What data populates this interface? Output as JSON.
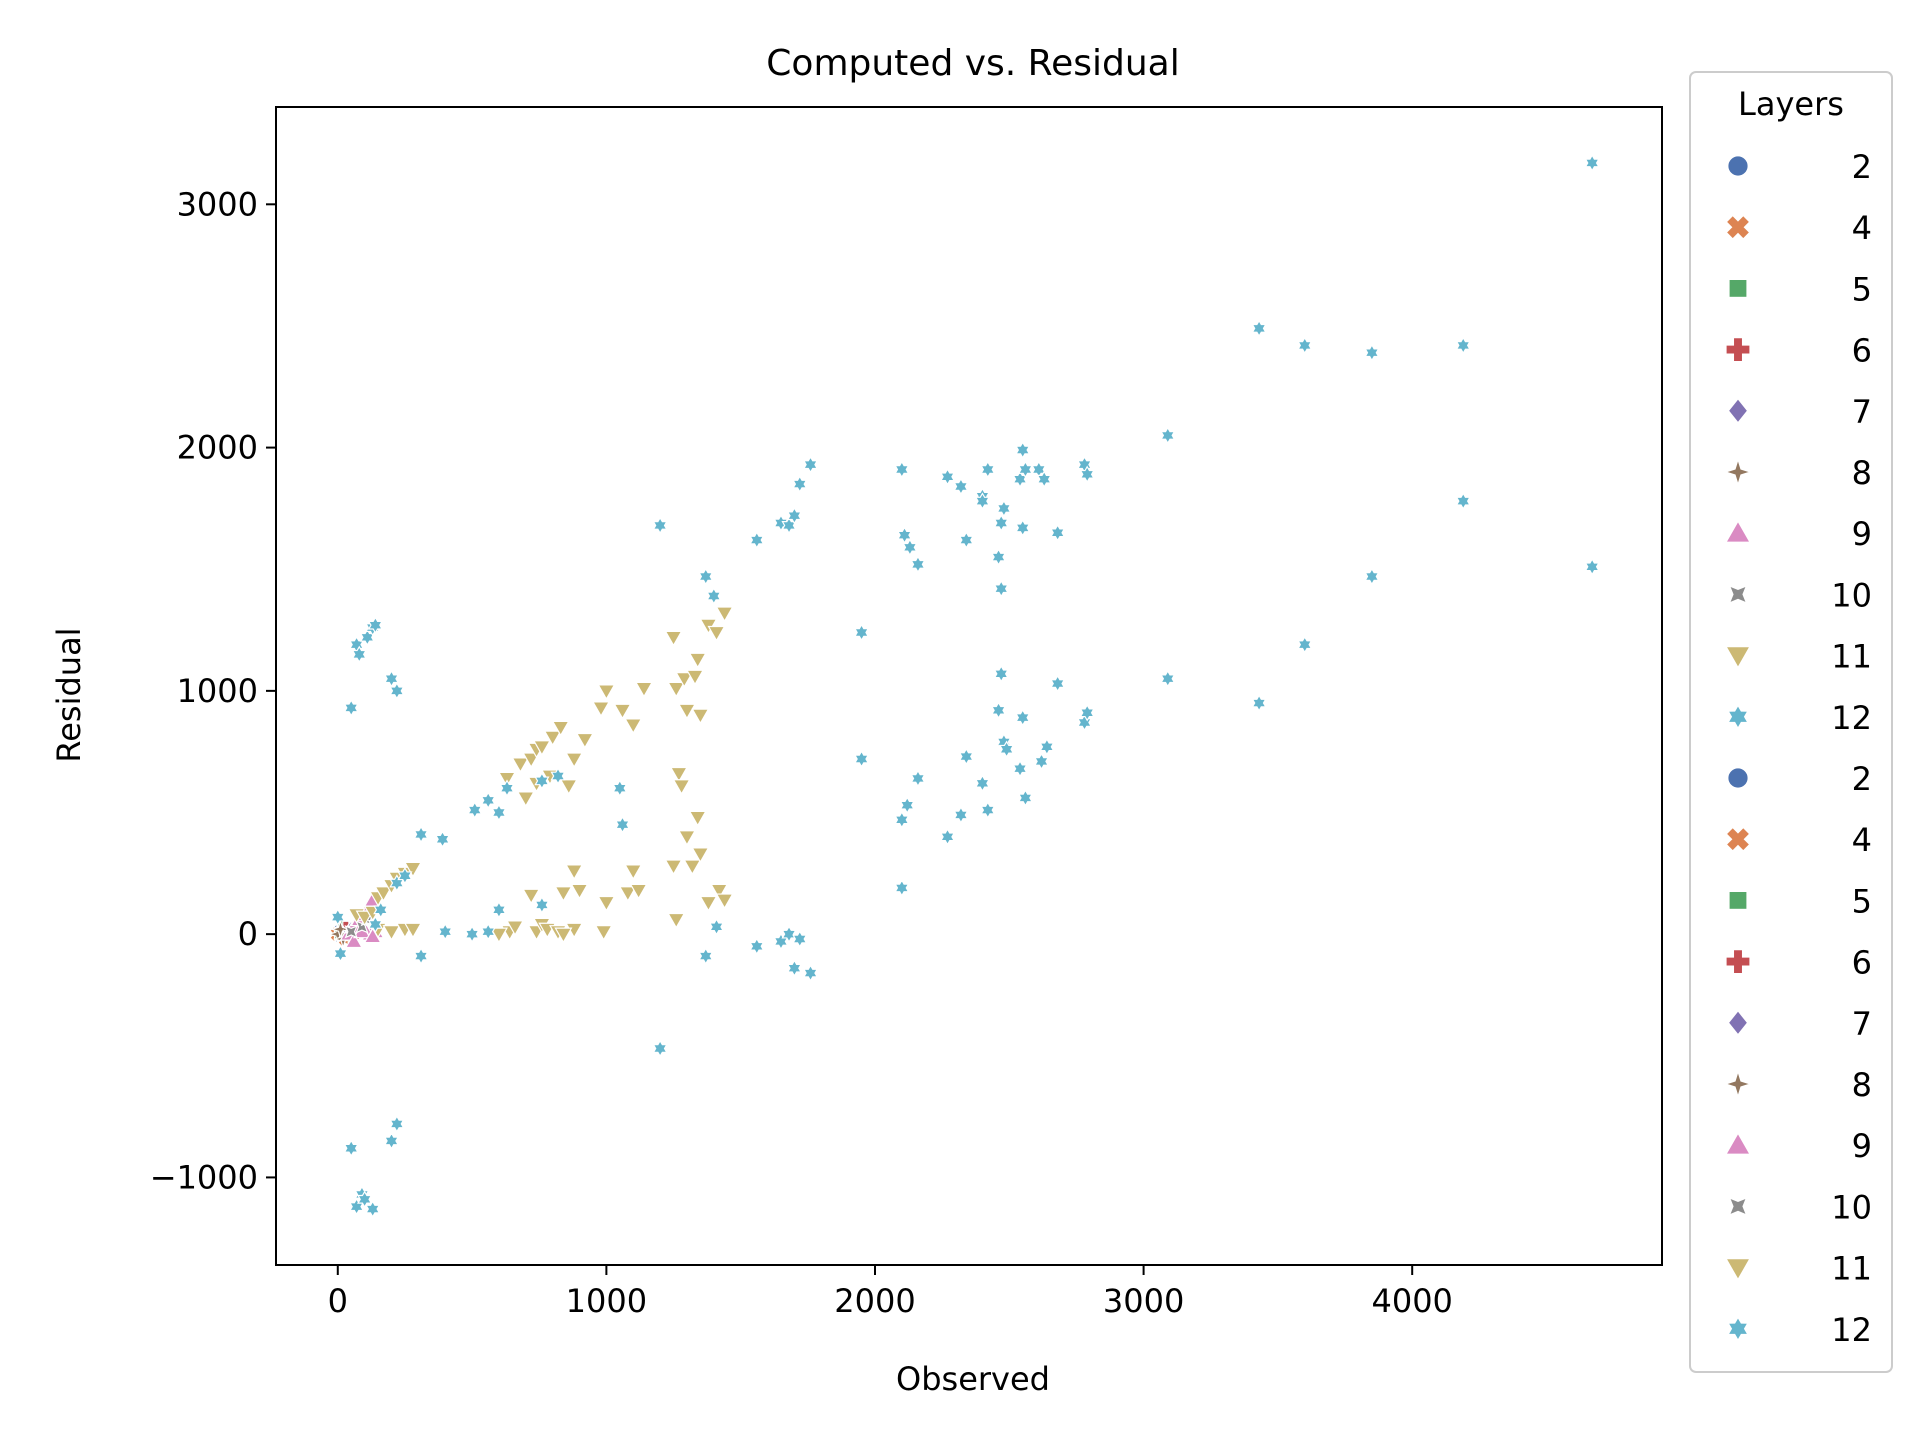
{
  "chart_data": {
    "type": "scatter",
    "title": "Computed vs. Residual",
    "xlabel": "Observed",
    "ylabel": "Residual",
    "xlim": [
      -230,
      4930
    ],
    "ylim": [
      -1360,
      3400
    ],
    "xticks": [
      0,
      1000,
      2000,
      3000,
      4000
    ],
    "yticks": [
      -1000,
      0,
      1000,
      2000,
      3000
    ],
    "xtick_labels": [
      "0",
      "1000",
      "2000",
      "3000",
      "4000"
    ],
    "ytick_labels": [
      "−1000",
      "0",
      "1000",
      "2000",
      "3000"
    ],
    "grid": false,
    "legend": {
      "title": "Layers",
      "placement": "outside-right",
      "entries": [
        {
          "label": "2",
          "marker": "circle",
          "color": "#4c72b0"
        },
        {
          "label": "4",
          "marker": "x",
          "color": "#dd8452"
        },
        {
          "label": "5",
          "marker": "square",
          "color": "#55a868"
        },
        {
          "label": "6",
          "marker": "plus",
          "color": "#c44e52"
        },
        {
          "label": "7",
          "marker": "diamond",
          "color": "#8172b3"
        },
        {
          "label": "8",
          "marker": "star4",
          "color": "#937860"
        },
        {
          "label": "9",
          "marker": "triangle-up",
          "color": "#da8bc3"
        },
        {
          "label": "10",
          "marker": "star4x",
          "color": "#8c8c8c"
        },
        {
          "label": "11",
          "marker": "triangle-down",
          "color": "#ccb974"
        },
        {
          "label": "12",
          "marker": "star6",
          "color": "#64b5cd"
        },
        {
          "label": "2",
          "marker": "circle",
          "color": "#4c72b0"
        },
        {
          "label": "4",
          "marker": "x",
          "color": "#dd8452"
        },
        {
          "label": "5",
          "marker": "square",
          "color": "#55a868"
        },
        {
          "label": "6",
          "marker": "plus",
          "color": "#c44e52"
        },
        {
          "label": "7",
          "marker": "diamond",
          "color": "#8172b3"
        },
        {
          "label": "8",
          "marker": "star4",
          "color": "#937860"
        },
        {
          "label": "9",
          "marker": "triangle-up",
          "color": "#da8bc3"
        },
        {
          "label": "10",
          "marker": "star4x",
          "color": "#8c8c8c"
        },
        {
          "label": "11",
          "marker": "triangle-down",
          "color": "#ccb974"
        },
        {
          "label": "12",
          "marker": "star6",
          "color": "#64b5cd"
        }
      ]
    },
    "series": [
      {
        "name": "2",
        "marker": "circle",
        "color": "#4c72b0",
        "points": [
          [
            0,
            10
          ],
          [
            10,
            -10
          ],
          [
            20,
            20
          ],
          [
            40,
            0
          ]
        ]
      },
      {
        "name": "4",
        "marker": "x",
        "color": "#dd8452",
        "points": [
          [
            0,
            0
          ],
          [
            20,
            10
          ],
          [
            30,
            -20
          ]
        ]
      },
      {
        "name": "5",
        "marker": "square",
        "color": "#55a868",
        "points": [
          [
            10,
            0
          ],
          [
            20,
            30
          ]
        ]
      },
      {
        "name": "6",
        "marker": "plus",
        "color": "#c44e52",
        "points": [
          [
            30,
            20
          ],
          [
            50,
            -10
          ],
          [
            60,
            0
          ]
        ]
      },
      {
        "name": "7",
        "marker": "diamond",
        "color": "#8172b3",
        "points": [
          [
            20,
            0
          ],
          [
            50,
            20
          ]
        ]
      },
      {
        "name": "8",
        "marker": "star4",
        "color": "#937860",
        "points": [
          [
            0,
            0
          ],
          [
            10,
            20
          ],
          [
            20,
            -20
          ]
        ]
      },
      {
        "name": "9",
        "marker": "triangle-up",
        "color": "#da8bc3",
        "points": [
          [
            40,
            0
          ],
          [
            60,
            30
          ],
          [
            80,
            60
          ],
          [
            100,
            80
          ],
          [
            110,
            100
          ],
          [
            120,
            120
          ],
          [
            130,
            140
          ],
          [
            120,
            0
          ],
          [
            100,
            20
          ],
          [
            140,
            10
          ],
          [
            60,
            -30
          ],
          [
            90,
            10
          ],
          [
            130,
            -10
          ]
        ]
      },
      {
        "name": "10",
        "marker": "star4x",
        "color": "#8c8c8c",
        "points": [
          [
            50,
            10
          ],
          [
            90,
            30
          ],
          [
            110,
            60
          ]
        ]
      },
      {
        "name": "11",
        "marker": "triangle-down",
        "color": "#ccb974",
        "points": [
          [
            70,
            80
          ],
          [
            100,
            70
          ],
          [
            130,
            90
          ],
          [
            150,
            150
          ],
          [
            170,
            170
          ],
          [
            200,
            200
          ],
          [
            220,
            230
          ],
          [
            250,
            250
          ],
          [
            280,
            270
          ],
          [
            150,
            20
          ],
          [
            200,
            10
          ],
          [
            250,
            20
          ],
          [
            280,
            20
          ],
          [
            630,
            640
          ],
          [
            680,
            700
          ],
          [
            720,
            720
          ],
          [
            740,
            760
          ],
          [
            760,
            770
          ],
          [
            800,
            810
          ],
          [
            830,
            850
          ],
          [
            860,
            610
          ],
          [
            880,
            720
          ],
          [
            920,
            800
          ],
          [
            700,
            560
          ],
          [
            740,
            620
          ],
          [
            790,
            650
          ],
          [
            980,
            930
          ],
          [
            1000,
            1000
          ],
          [
            1060,
            920
          ],
          [
            1100,
            860
          ],
          [
            1140,
            1010
          ],
          [
            1250,
            1220
          ],
          [
            1260,
            1010
          ],
          [
            1290,
            1050
          ],
          [
            1300,
            920
          ],
          [
            1330,
            1060
          ],
          [
            1340,
            1130
          ],
          [
            1350,
            900
          ],
          [
            1380,
            1270
          ],
          [
            1410,
            1240
          ],
          [
            1440,
            1320
          ],
          [
            1270,
            660
          ],
          [
            1280,
            610
          ],
          [
            1300,
            400
          ],
          [
            1320,
            280
          ],
          [
            1340,
            480
          ],
          [
            1350,
            330
          ],
          [
            1380,
            130
          ],
          [
            1420,
            180
          ],
          [
            1440,
            140
          ],
          [
            1250,
            280
          ],
          [
            1260,
            60
          ],
          [
            1100,
            260
          ],
          [
            1080,
            170
          ],
          [
            1120,
            180
          ],
          [
            1000,
            130
          ],
          [
            990,
            10
          ],
          [
            880,
            260
          ],
          [
            900,
            180
          ],
          [
            840,
            170
          ],
          [
            720,
            160
          ],
          [
            740,
            10
          ],
          [
            760,
            40
          ],
          [
            780,
            20
          ],
          [
            820,
            10
          ],
          [
            640,
            10
          ],
          [
            660,
            30
          ],
          [
            600,
            0
          ],
          [
            880,
            20
          ],
          [
            840,
            0
          ]
        ]
      },
      {
        "name": "12",
        "marker": "star6",
        "color": "#64b5cd",
        "points": [
          [
            50,
            930
          ],
          [
            70,
            1190
          ],
          [
            80,
            1150
          ],
          [
            110,
            1220
          ],
          [
            130,
            1260
          ],
          [
            140,
            1270
          ],
          [
            200,
            1050
          ],
          [
            220,
            1000
          ],
          [
            50,
            -880
          ],
          [
            70,
            -1120
          ],
          [
            90,
            -1070
          ],
          [
            100,
            -1090
          ],
          [
            130,
            -1130
          ],
          [
            200,
            -850
          ],
          [
            220,
            -780
          ],
          [
            0,
            70
          ],
          [
            10,
            -80
          ],
          [
            140,
            40
          ],
          [
            160,
            100
          ],
          [
            220,
            210
          ],
          [
            250,
            240
          ],
          [
            310,
            410
          ],
          [
            390,
            390
          ],
          [
            510,
            510
          ],
          [
            560,
            550
          ],
          [
            600,
            500
          ],
          [
            630,
            600
          ],
          [
            820,
            650
          ],
          [
            1050,
            600
          ],
          [
            1060,
            450
          ],
          [
            760,
            630
          ],
          [
            1200,
            1680
          ],
          [
            1370,
            1470
          ],
          [
            1400,
            1390
          ],
          [
            1560,
            1620
          ],
          [
            1650,
            1690
          ],
          [
            1680,
            1680
          ],
          [
            1700,
            1720
          ],
          [
            1720,
            1850
          ],
          [
            1760,
            1930
          ],
          [
            1950,
            1240
          ],
          [
            1950,
            720
          ],
          [
            2100,
            1910
          ],
          [
            2110,
            1640
          ],
          [
            2130,
            1590
          ],
          [
            2160,
            1520
          ],
          [
            2100,
            470
          ],
          [
            2120,
            530
          ],
          [
            2160,
            640
          ],
          [
            2100,
            190
          ],
          [
            2270,
            1880
          ],
          [
            2320,
            1840
          ],
          [
            2340,
            1620
          ],
          [
            2400,
            1800
          ],
          [
            2420,
            1910
          ],
          [
            2400,
            1780
          ],
          [
            2470,
            1690
          ],
          [
            2480,
            1750
          ],
          [
            2460,
            1550
          ],
          [
            2470,
            1420
          ],
          [
            2540,
            1870
          ],
          [
            2550,
            1990
          ],
          [
            2560,
            1910
          ],
          [
            2550,
            1670
          ],
          [
            2610,
            1910
          ],
          [
            2630,
            1870
          ],
          [
            2680,
            1650
          ],
          [
            2780,
            1930
          ],
          [
            2790,
            1890
          ],
          [
            2270,
            400
          ],
          [
            2320,
            490
          ],
          [
            2340,
            730
          ],
          [
            2400,
            620
          ],
          [
            2420,
            510
          ],
          [
            2460,
            920
          ],
          [
            2470,
            1070
          ],
          [
            2480,
            790
          ],
          [
            2490,
            760
          ],
          [
            2540,
            680
          ],
          [
            2550,
            890
          ],
          [
            2560,
            560
          ],
          [
            2620,
            710
          ],
          [
            2640,
            770
          ],
          [
            2680,
            1030
          ],
          [
            2780,
            870
          ],
          [
            2790,
            910
          ],
          [
            3090,
            2050
          ],
          [
            3090,
            1050
          ],
          [
            3430,
            2490
          ],
          [
            3430,
            950
          ],
          [
            3600,
            2420
          ],
          [
            3600,
            1190
          ],
          [
            3850,
            2390
          ],
          [
            3850,
            1470
          ],
          [
            4190,
            2420
          ],
          [
            4190,
            1780
          ],
          [
            4670,
            3170
          ],
          [
            4670,
            1510
          ],
          [
            310,
            -90
          ],
          [
            400,
            10
          ],
          [
            500,
            0
          ],
          [
            560,
            10
          ],
          [
            600,
            100
          ],
          [
            760,
            120
          ],
          [
            1200,
            -470
          ],
          [
            1370,
            -90
          ],
          [
            1410,
            30
          ],
          [
            1560,
            -50
          ],
          [
            1650,
            -30
          ],
          [
            1680,
            0
          ],
          [
            1700,
            -140
          ],
          [
            1720,
            -20
          ],
          [
            1760,
            -160
          ]
        ]
      }
    ]
  }
}
